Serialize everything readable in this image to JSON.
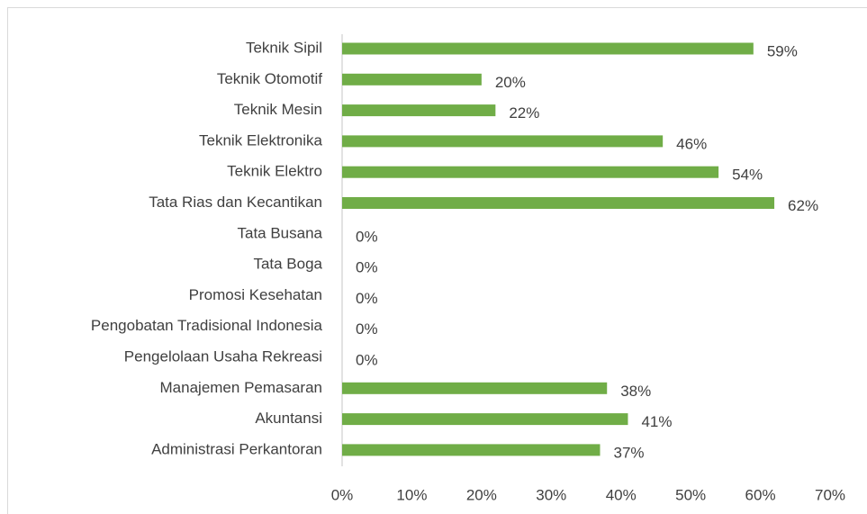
{
  "chart_data": {
    "type": "bar",
    "orientation": "horizontal",
    "categories": [
      "Teknik Sipil",
      "Teknik Otomotif",
      "Teknik Mesin",
      "Teknik Elektronika",
      "Teknik Elektro",
      "Tata Rias dan Kecantikan",
      "Tata Busana",
      "Tata Boga",
      "Promosi Kesehatan",
      "Pengobatan Tradisional Indonesia",
      "Pengelolaan Usaha Rekreasi",
      "Manajemen Pemasaran",
      "Akuntansi",
      "Administrasi Perkantoran"
    ],
    "values": [
      59,
      20,
      22,
      46,
      54,
      62,
      0,
      0,
      0,
      0,
      0,
      38,
      41,
      37
    ],
    "value_labels": [
      "59%",
      "20%",
      "22%",
      "46%",
      "54%",
      "62%",
      "0%",
      "0%",
      "0%",
      "0%",
      "0%",
      "38%",
      "41%",
      "37%"
    ],
    "color": "#70ad47",
    "xlim": [
      0,
      70
    ],
    "xticks": [
      {
        "value": 0,
        "label": "0%"
      },
      {
        "value": 10,
        "label": "10%"
      },
      {
        "value": 20,
        "label": "20%"
      },
      {
        "value": 30,
        "label": "30%"
      },
      {
        "value": 40,
        "label": "40%"
      },
      {
        "value": 50,
        "label": "50%"
      },
      {
        "value": 60,
        "label": "60%"
      },
      {
        "value": 70,
        "label": "70%"
      }
    ],
    "grid": false
  }
}
